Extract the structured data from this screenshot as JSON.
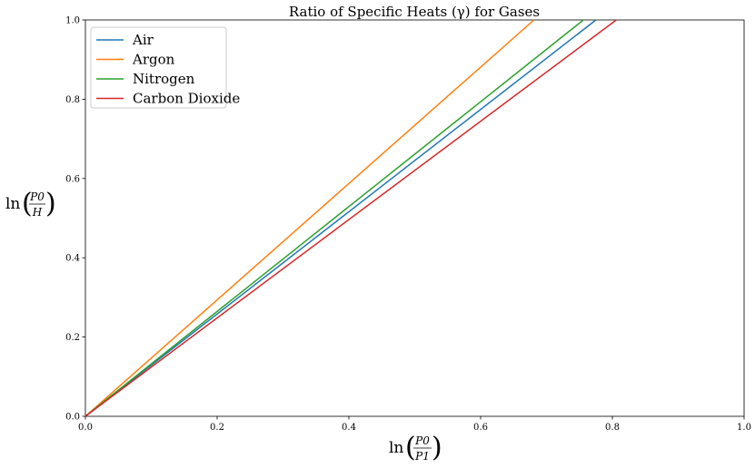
{
  "chart_data": {
    "type": "line",
    "title": "Ratio of Specific Heats (γ) for Gases",
    "xlabel": {
      "fn": "ln",
      "num": "P0",
      "den": "P1"
    },
    "ylabel": {
      "fn": "ln",
      "num": "P0",
      "den": "H"
    },
    "xlim": [
      0,
      1
    ],
    "ylim": [
      0,
      1
    ],
    "xticks": [
      "0.0",
      "0.2",
      "0.4",
      "0.6",
      "0.8",
      "1.0"
    ],
    "yticks": [
      "0.0",
      "0.2",
      "0.4",
      "0.6",
      "0.8",
      "1.0"
    ],
    "grid": false,
    "legend_position": "upper-left",
    "series": [
      {
        "name": "Air",
        "color": "#1f77b4",
        "x": [
          0,
          0.775
        ],
        "y": [
          0,
          1.0
        ]
      },
      {
        "name": "Argon",
        "color": "#ff7f0e",
        "x": [
          0,
          0.681
        ],
        "y": [
          0,
          1.0
        ]
      },
      {
        "name": "Nitrogen",
        "color": "#2ca02c",
        "x": [
          0,
          0.756
        ],
        "y": [
          0,
          1.0
        ]
      },
      {
        "name": "Carbon Dioxide",
        "color": "#d62728",
        "x": [
          0,
          0.806
        ],
        "y": [
          0,
          1.0
        ]
      }
    ]
  }
}
